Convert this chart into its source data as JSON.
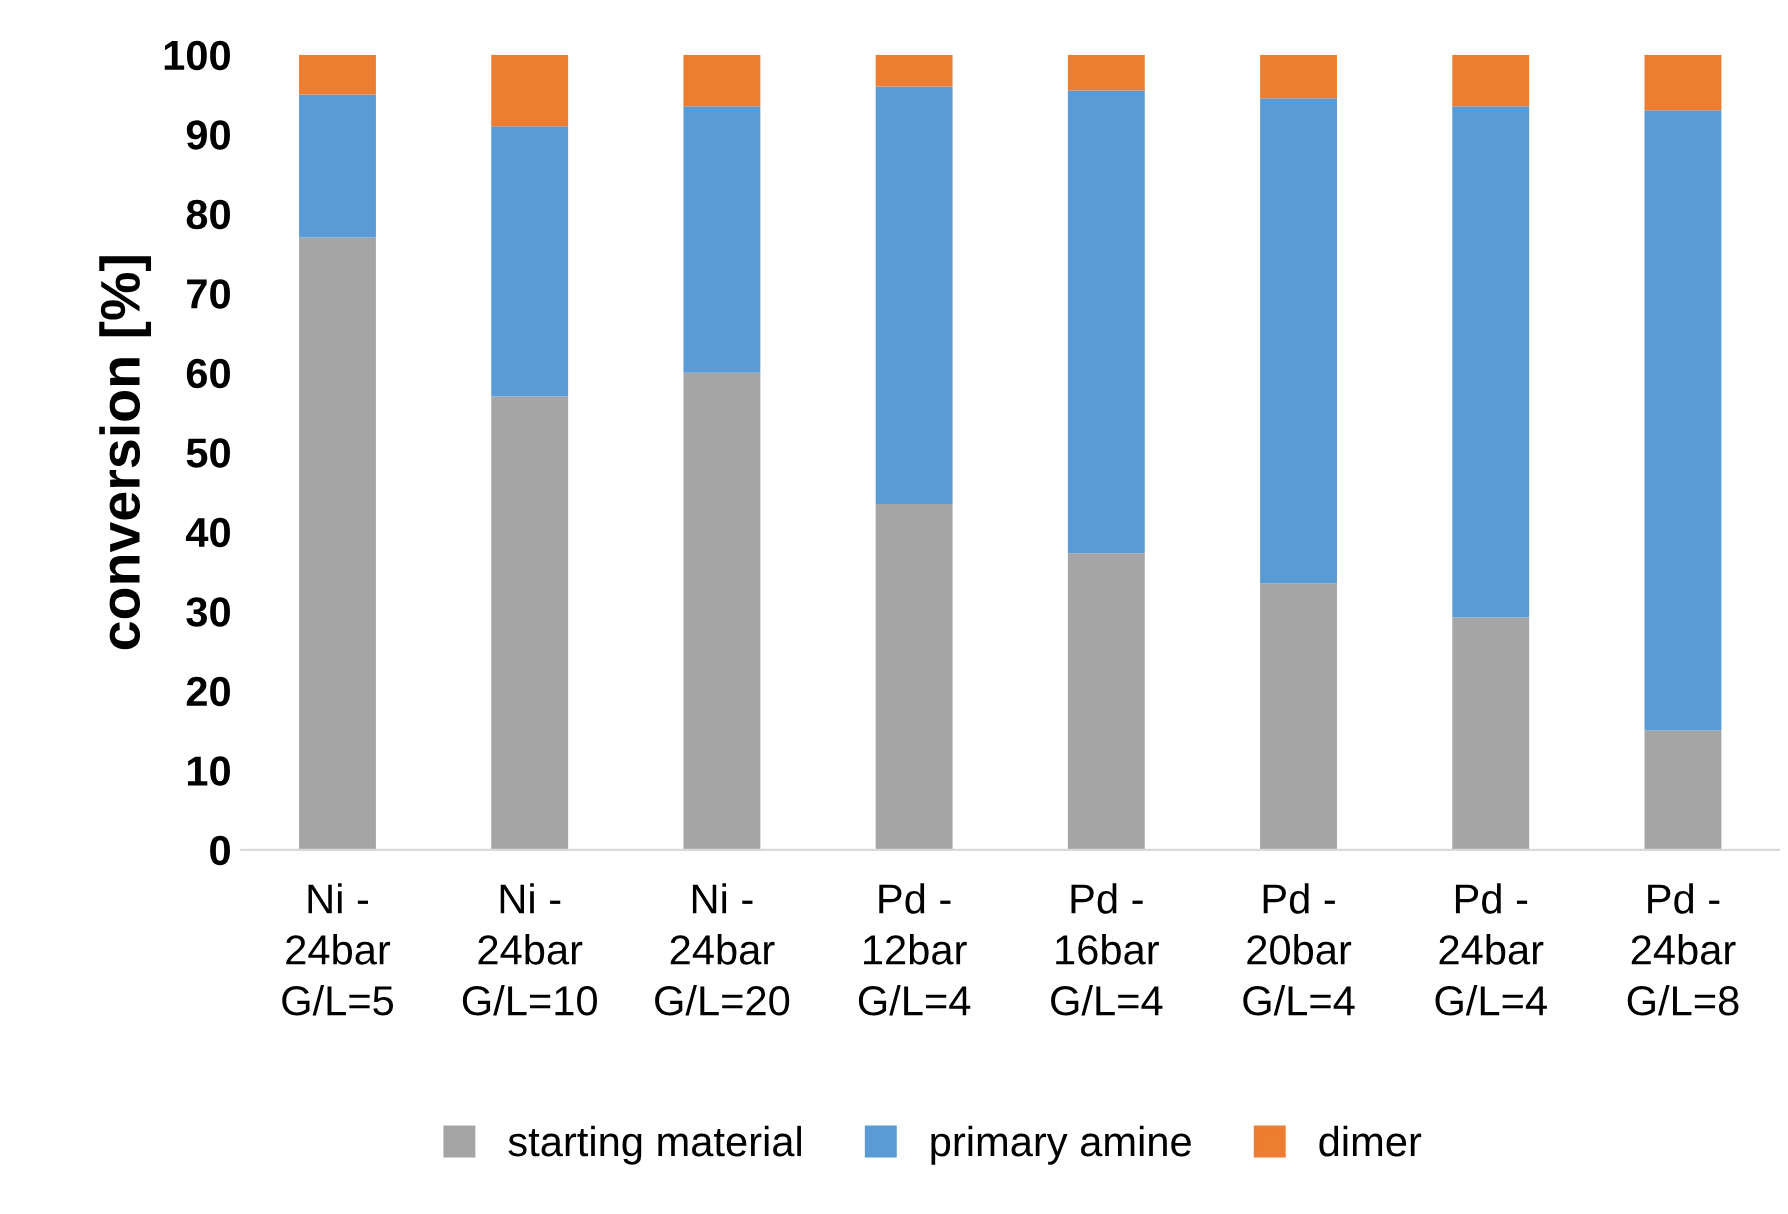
{
  "chart_data": {
    "type": "bar",
    "stacked": true,
    "ylabel": "conversion [%]",
    "categories": [
      "Ni -\n24bar\nG/L=5",
      "Ni -\n24bar\nG/L=10",
      "Ni -\n24bar\nG/L=20",
      "Pd -\n12bar\nG/L=4",
      "Pd -\n16bar\nG/L=4",
      "Pd -\n20bar\nG/L=4",
      "Pd -\n24bar\nG/L=4",
      "Pd -\n24bar\nG/L=8"
    ],
    "series": [
      {
        "name": "starting material",
        "color": "#a5a5a5",
        "values": [
          77,
          57,
          60,
          43.5,
          37.3,
          33.5,
          29.2,
          15
        ]
      },
      {
        "name": "primary amine",
        "color": "#5b9bd5",
        "values": [
          18,
          34,
          33.5,
          52.5,
          58.2,
          61,
          64.3,
          78
        ]
      },
      {
        "name": "dimer",
        "color": "#ed7d31",
        "values": [
          5,
          9,
          6.5,
          4,
          4.5,
          5.5,
          6.5,
          7
        ]
      }
    ],
    "ylim": [
      0,
      100
    ],
    "yticks": [
      0,
      10,
      20,
      30,
      40,
      50,
      60,
      70,
      80,
      90,
      100
    ],
    "grid": false,
    "legend": "bottom"
  }
}
